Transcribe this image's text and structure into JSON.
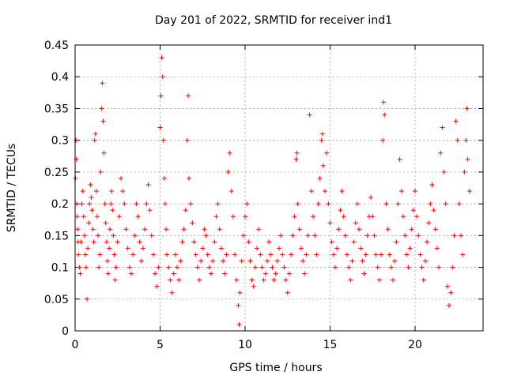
{
  "chart_data": {
    "type": "scatter",
    "title": "Day 201 of 2022, SRMTID for receiver ind1",
    "xlabel": "GPS time / hours",
    "ylabel": "SRMTID / TECUs",
    "xlim": [
      0,
      24
    ],
    "ylim": [
      0,
      0.45
    ],
    "grid": true,
    "marker": "+",
    "color": "#ff0000",
    "x_ticks": [
      {
        "value": 0,
        "label": "0"
      },
      {
        "value": 5,
        "label": "5"
      },
      {
        "value": 10,
        "label": "10"
      },
      {
        "value": 15,
        "label": "15"
      },
      {
        "value": 20,
        "label": "20"
      }
    ],
    "y_ticks": [
      {
        "value": 0,
        "label": "0"
      },
      {
        "value": 0.05,
        "label": "0.05"
      },
      {
        "value": 0.1,
        "label": "0.1"
      },
      {
        "value": 0.15,
        "label": "0.15"
      },
      {
        "value": 0.2,
        "label": "0.2"
      },
      {
        "value": 0.25,
        "label": "0.25"
      },
      {
        "value": 0.3,
        "label": "0.3"
      },
      {
        "value": 0.35,
        "label": "0.35"
      },
      {
        "value": 0.4,
        "label": "0.4"
      },
      {
        "value": 0.45,
        "label": "0.45"
      }
    ],
    "series": [
      {
        "name": "SRMTID",
        "points": [
          [
            0.02,
            0.24
          ],
          [
            0.05,
            0.3
          ],
          [
            0.08,
            0.27
          ],
          [
            0.1,
            0.2
          ],
          [
            0.12,
            0.18
          ],
          [
            0.15,
            0.16
          ],
          [
            0.18,
            0.14
          ],
          [
            0.2,
            0.12
          ],
          [
            0.25,
            0.1
          ],
          [
            0.3,
            0.09
          ],
          [
            0.35,
            0.14
          ],
          [
            0.4,
            0.2
          ],
          [
            0.45,
            0.22
          ],
          [
            0.5,
            0.18
          ],
          [
            0.55,
            0.15
          ],
          [
            0.6,
            0.12
          ],
          [
            0.65,
            0.1
          ],
          [
            0.7,
            0.05
          ],
          [
            0.75,
            0.13
          ],
          [
            0.8,
            0.17
          ],
          [
            0.85,
            0.2
          ],
          [
            0.9,
            0.23
          ],
          [
            0.95,
            0.21
          ],
          [
            1.0,
            0.19
          ],
          [
            1.05,
            0.16
          ],
          [
            1.1,
            0.14
          ],
          [
            1.15,
            0.3
          ],
          [
            1.2,
            0.31
          ],
          [
            1.25,
            0.22
          ],
          [
            1.3,
            0.18
          ],
          [
            1.35,
            0.15
          ],
          [
            1.4,
            0.1
          ],
          [
            1.45,
            0.12
          ],
          [
            1.5,
            0.25
          ],
          [
            1.55,
            0.35
          ],
          [
            1.6,
            0.39
          ],
          [
            1.65,
            0.33
          ],
          [
            1.7,
            0.28
          ],
          [
            1.75,
            0.2
          ],
          [
            1.8,
            0.17
          ],
          [
            1.85,
            0.14
          ],
          [
            1.9,
            0.11
          ],
          [
            1.95,
            0.09
          ],
          [
            2.0,
            0.13
          ],
          [
            2.05,
            0.16
          ],
          [
            2.1,
            0.2
          ],
          [
            2.15,
            0.22
          ],
          [
            2.2,
            0.19
          ],
          [
            2.25,
            0.15
          ],
          [
            2.3,
            0.12
          ],
          [
            2.35,
            0.08
          ],
          [
            2.4,
            0.1
          ],
          [
            2.5,
            0.14
          ],
          [
            2.6,
            0.18
          ],
          [
            2.7,
            0.24
          ],
          [
            2.8,
            0.22
          ],
          [
            2.9,
            0.2
          ],
          [
            3.0,
            0.16
          ],
          [
            3.1,
            0.13
          ],
          [
            3.2,
            0.1
          ],
          [
            3.3,
            0.09
          ],
          [
            3.4,
            0.12
          ],
          [
            3.5,
            0.15
          ],
          [
            3.6,
            0.2
          ],
          [
            3.7,
            0.18
          ],
          [
            3.8,
            0.14
          ],
          [
            3.9,
            0.11
          ],
          [
            4.0,
            0.13
          ],
          [
            4.1,
            0.16
          ],
          [
            4.2,
            0.2
          ],
          [
            4.3,
            0.23
          ],
          [
            4.4,
            0.19
          ],
          [
            4.5,
            0.15
          ],
          [
            4.6,
            0.12
          ],
          [
            4.7,
            0.09
          ],
          [
            4.8,
            0.07
          ],
          [
            4.9,
            0.1
          ],
          [
            5.0,
            0.32
          ],
          [
            5.05,
            0.37
          ],
          [
            5.1,
            0.43
          ],
          [
            5.15,
            0.4
          ],
          [
            5.2,
            0.3
          ],
          [
            5.25,
            0.24
          ],
          [
            5.3,
            0.2
          ],
          [
            5.35,
            0.16
          ],
          [
            5.4,
            0.12
          ],
          [
            5.5,
            0.1
          ],
          [
            5.6,
            0.08
          ],
          [
            5.7,
            0.06
          ],
          [
            5.8,
            0.09
          ],
          [
            5.9,
            0.12
          ],
          [
            6.0,
            0.1
          ],
          [
            6.1,
            0.08
          ],
          [
            6.2,
            0.11
          ],
          [
            6.3,
            0.14
          ],
          [
            6.4,
            0.16
          ],
          [
            6.5,
            0.19
          ],
          [
            6.6,
            0.3
          ],
          [
            6.65,
            0.37
          ],
          [
            6.7,
            0.24
          ],
          [
            6.8,
            0.2
          ],
          [
            6.9,
            0.17
          ],
          [
            7.0,
            0.14
          ],
          [
            7.1,
            0.12
          ],
          [
            7.2,
            0.1
          ],
          [
            7.3,
            0.08
          ],
          [
            7.4,
            0.11
          ],
          [
            7.5,
            0.13
          ],
          [
            7.6,
            0.16
          ],
          [
            7.7,
            0.15
          ],
          [
            7.8,
            0.12
          ],
          [
            7.9,
            0.1
          ],
          [
            8.0,
            0.09
          ],
          [
            8.1,
            0.11
          ],
          [
            8.2,
            0.14
          ],
          [
            8.3,
            0.18
          ],
          [
            8.4,
            0.2
          ],
          [
            8.5,
            0.16
          ],
          [
            8.6,
            0.13
          ],
          [
            8.7,
            0.11
          ],
          [
            8.8,
            0.09
          ],
          [
            8.9,
            0.12
          ],
          [
            9.0,
            0.25
          ],
          [
            9.1,
            0.28
          ],
          [
            9.2,
            0.22
          ],
          [
            9.3,
            0.18
          ],
          [
            9.4,
            0.12
          ],
          [
            9.5,
            0.08
          ],
          [
            9.6,
            0.04
          ],
          [
            9.65,
            0.01
          ],
          [
            9.7,
            0.06
          ],
          [
            9.8,
            0.11
          ],
          [
            9.9,
            0.15
          ],
          [
            10.0,
            0.18
          ],
          [
            10.1,
            0.2
          ],
          [
            10.2,
            0.14
          ],
          [
            10.3,
            0.11
          ],
          [
            10.4,
            0.08
          ],
          [
            10.5,
            0.07
          ],
          [
            10.6,
            0.1
          ],
          [
            10.7,
            0.13
          ],
          [
            10.8,
            0.16
          ],
          [
            10.9,
            0.12
          ],
          [
            11.0,
            0.1
          ],
          [
            11.1,
            0.08
          ],
          [
            11.2,
            0.09
          ],
          [
            11.3,
            0.11
          ],
          [
            11.4,
            0.14
          ],
          [
            11.5,
            0.12
          ],
          [
            11.6,
            0.1
          ],
          [
            11.7,
            0.08
          ],
          [
            11.8,
            0.09
          ],
          [
            11.9,
            0.11
          ],
          [
            12.0,
            0.13
          ],
          [
            12.1,
            0.15
          ],
          [
            12.2,
            0.12
          ],
          [
            12.3,
            0.1
          ],
          [
            12.4,
            0.08
          ],
          [
            12.5,
            0.06
          ],
          [
            12.6,
            0.09
          ],
          [
            12.7,
            0.12
          ],
          [
            12.8,
            0.15
          ],
          [
            12.9,
            0.18
          ],
          [
            13.0,
            0.27
          ],
          [
            13.05,
            0.28
          ],
          [
            13.1,
            0.2
          ],
          [
            13.2,
            0.16
          ],
          [
            13.3,
            0.13
          ],
          [
            13.4,
            0.11
          ],
          [
            13.5,
            0.09
          ],
          [
            13.6,
            0.12
          ],
          [
            13.7,
            0.15
          ],
          [
            13.8,
            0.34
          ],
          [
            13.9,
            0.22
          ],
          [
            14.0,
            0.18
          ],
          [
            14.1,
            0.15
          ],
          [
            14.2,
            0.12
          ],
          [
            14.3,
            0.2
          ],
          [
            14.4,
            0.24
          ],
          [
            14.5,
            0.3
          ],
          [
            14.55,
            0.31
          ],
          [
            14.6,
            0.26
          ],
          [
            14.7,
            0.22
          ],
          [
            14.8,
            0.28
          ],
          [
            14.9,
            0.2
          ],
          [
            15.0,
            0.17
          ],
          [
            15.1,
            0.14
          ],
          [
            15.2,
            0.12
          ],
          [
            15.3,
            0.1
          ],
          [
            15.4,
            0.13
          ],
          [
            15.5,
            0.16
          ],
          [
            15.6,
            0.19
          ],
          [
            15.7,
            0.22
          ],
          [
            15.8,
            0.18
          ],
          [
            15.9,
            0.15
          ],
          [
            16.0,
            0.12
          ],
          [
            16.1,
            0.1
          ],
          [
            16.2,
            0.08
          ],
          [
            16.3,
            0.11
          ],
          [
            16.4,
            0.14
          ],
          [
            16.5,
            0.17
          ],
          [
            16.6,
            0.2
          ],
          [
            16.7,
            0.16
          ],
          [
            16.8,
            0.13
          ],
          [
            16.9,
            0.11
          ],
          [
            17.0,
            0.09
          ],
          [
            17.1,
            0.12
          ],
          [
            17.2,
            0.15
          ],
          [
            17.3,
            0.18
          ],
          [
            17.4,
            0.21
          ],
          [
            17.5,
            0.18
          ],
          [
            17.6,
            0.15
          ],
          [
            17.7,
            0.12
          ],
          [
            17.8,
            0.1
          ],
          [
            17.9,
            0.08
          ],
          [
            18.0,
            0.12
          ],
          [
            18.1,
            0.3
          ],
          [
            18.15,
            0.36
          ],
          [
            18.2,
            0.34
          ],
          [
            18.3,
            0.2
          ],
          [
            18.4,
            0.16
          ],
          [
            18.5,
            0.12
          ],
          [
            18.6,
            0.1
          ],
          [
            18.7,
            0.08
          ],
          [
            18.8,
            0.11
          ],
          [
            18.9,
            0.14
          ],
          [
            19.0,
            0.2
          ],
          [
            19.1,
            0.27
          ],
          [
            19.2,
            0.22
          ],
          [
            19.3,
            0.18
          ],
          [
            19.4,
            0.15
          ],
          [
            19.5,
            0.12
          ],
          [
            19.6,
            0.1
          ],
          [
            19.7,
            0.13
          ],
          [
            19.8,
            0.16
          ],
          [
            19.9,
            0.19
          ],
          [
            20.0,
            0.22
          ],
          [
            20.1,
            0.18
          ],
          [
            20.2,
            0.15
          ],
          [
            20.3,
            0.12
          ],
          [
            20.4,
            0.1
          ],
          [
            20.5,
            0.08
          ],
          [
            20.6,
            0.11
          ],
          [
            20.7,
            0.14
          ],
          [
            20.8,
            0.17
          ],
          [
            20.9,
            0.2
          ],
          [
            21.0,
            0.23
          ],
          [
            21.1,
            0.19
          ],
          [
            21.2,
            0.16
          ],
          [
            21.3,
            0.13
          ],
          [
            21.4,
            0.1
          ],
          [
            21.5,
            0.28
          ],
          [
            21.6,
            0.32
          ],
          [
            21.7,
            0.25
          ],
          [
            21.8,
            0.2
          ],
          [
            21.9,
            0.07
          ],
          [
            22.0,
            0.04
          ],
          [
            22.1,
            0.06
          ],
          [
            22.2,
            0.1
          ],
          [
            22.3,
            0.15
          ],
          [
            22.4,
            0.33
          ],
          [
            22.5,
            0.3
          ],
          [
            22.6,
            0.2
          ],
          [
            22.7,
            0.15
          ],
          [
            22.8,
            0.12
          ],
          [
            22.9,
            0.25
          ],
          [
            23.0,
            0.3
          ],
          [
            23.05,
            0.35
          ],
          [
            23.1,
            0.27
          ],
          [
            23.2,
            0.22
          ]
        ]
      }
    ]
  }
}
